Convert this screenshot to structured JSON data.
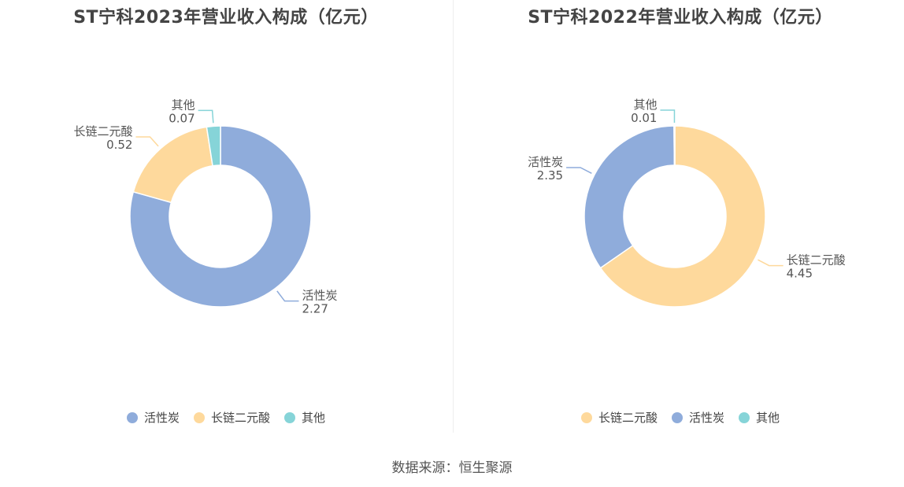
{
  "source": "数据来源：恒生聚源",
  "chart_data": [
    {
      "type": "pie",
      "title": "ST宁科2023年营业收入构成（亿元）",
      "slices": [
        {
          "name": "活性炭",
          "value": 2.27,
          "color": "#8facdb"
        },
        {
          "name": "长链二元酸",
          "value": 0.52,
          "color": "#fed99c"
        },
        {
          "name": "其他",
          "value": 0.07,
          "color": "#86d4d8"
        }
      ],
      "legend": [
        "活性炭",
        "长链二元酸",
        "其他"
      ],
      "legend_position": "bottom"
    },
    {
      "type": "pie",
      "title": "ST宁科2022年营业收入构成（亿元）",
      "slices": [
        {
          "name": "长链二元酸",
          "value": 4.45,
          "color": "#fed99c"
        },
        {
          "name": "活性炭",
          "value": 2.35,
          "color": "#8facdb"
        },
        {
          "name": "其他",
          "value": 0.01,
          "color": "#86d4d8"
        }
      ],
      "legend": [
        "长链二元酸",
        "活性炭",
        "其他"
      ],
      "legend_position": "bottom"
    }
  ]
}
